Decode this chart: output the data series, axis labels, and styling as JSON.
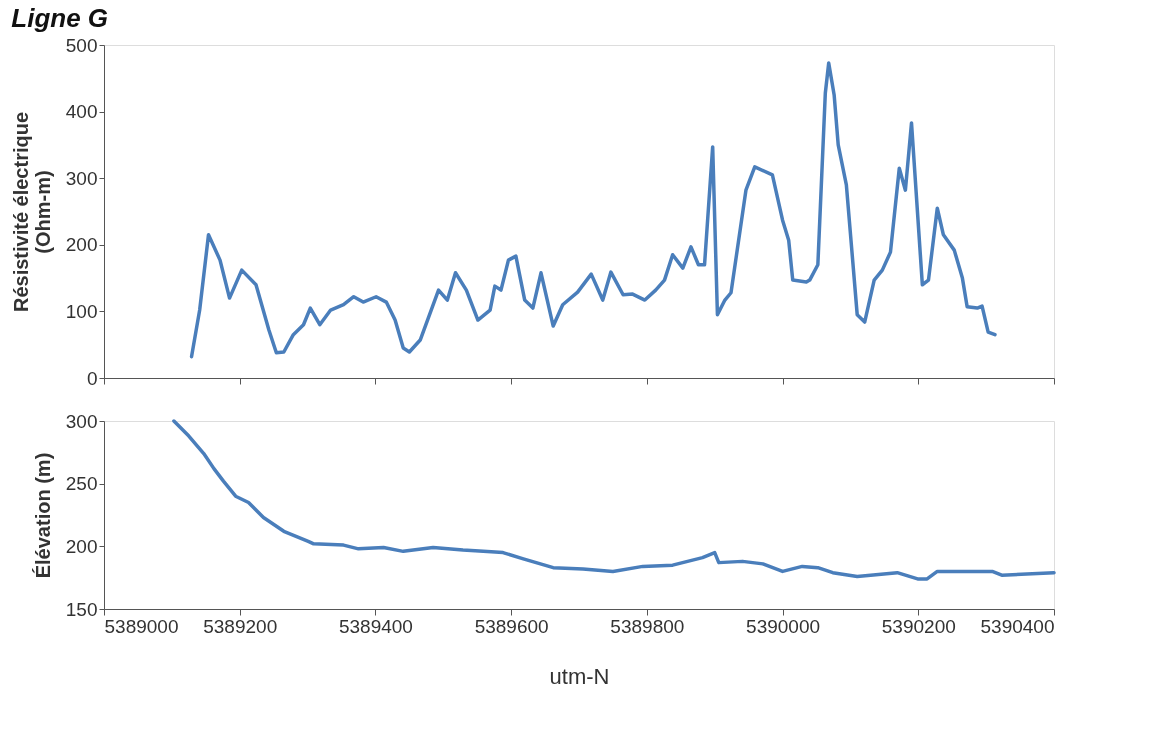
{
  "chart_data": [
    {
      "type": "line",
      "title": "Ligne G",
      "ylabel": "Résistivité électrique\n(Ohm-m)",
      "xlim": [
        5389000,
        5390400
      ],
      "xticks": [
        5389000,
        5389200,
        5389400,
        5389600,
        5389800,
        5390000,
        5390200,
        5390400
      ],
      "ylim": [
        0,
        500
      ],
      "yticks": [
        0,
        100,
        200,
        300,
        400,
        500
      ],
      "tick_labels": "y",
      "grid": false,
      "series": [
        {
          "color": "#4a7ebb",
          "x": [
            5389129,
            5389141,
            5389154,
            5389171,
            5389185,
            5389203,
            5389224,
            5389243,
            5389254,
            5389265,
            5389279,
            5389294,
            5389304,
            5389318,
            5389334,
            5389353,
            5389368,
            5389382,
            5389401,
            5389416,
            5389429,
            5389441,
            5389450,
            5389466,
            5389493,
            5389506,
            5389518,
            5389534,
            5389551,
            5389569,
            5389576,
            5389585,
            5389596,
            5389607,
            5389620,
            5389632,
            5389644,
            5389662,
            5389676,
            5389698,
            5389718,
            5389735,
            5389747,
            5389765,
            5389779,
            5389797,
            5389813,
            5389826,
            5389838,
            5389853,
            5389865,
            5389876,
            5389885,
            5389897,
            5389904,
            5389915,
            5389924,
            5389946,
            5389959,
            5389985,
            5390000,
            5390009,
            5390015,
            5390035,
            5390040,
            5390052,
            5390063,
            5390068,
            5390076,
            5390082,
            5390094,
            5390110,
            5390121,
            5390135,
            5390147,
            5390159,
            5390172,
            5390181,
            5390190,
            5390206,
            5390215,
            5390228,
            5390237,
            5390253,
            5390265,
            5390272,
            5390287,
            5390294,
            5390303,
            5390313
          ],
          "values": [
            32,
            102,
            215,
            177,
            120,
            162,
            140,
            72,
            38,
            39,
            65,
            80,
            105,
            80,
            102,
            110,
            122,
            114,
            122,
            114,
            87,
            45,
            39,
            57,
            132,
            117,
            158,
            132,
            87,
            102,
            138,
            132,
            177,
            183,
            117,
            105,
            158,
            78,
            110,
            129,
            156,
            117,
            159,
            125,
            126,
            117,
            132,
            147,
            185,
            165,
            197,
            170,
            170,
            347,
            95,
            117,
            128,
            282,
            317,
            305,
            237,
            207,
            147,
            144,
            147,
            170,
            428,
            473,
            425,
            350,
            290,
            95,
            84,
            147,
            162,
            189,
            315,
            282,
            383,
            140,
            147,
            255,
            215,
            192,
            150,
            107,
            105,
            108,
            69,
            65
          ]
        }
      ]
    },
    {
      "type": "line",
      "ylabel": "Élévation (m)",
      "xlabel": "utm-N",
      "xlim": [
        5389000,
        5390400
      ],
      "xticks": [
        5389000,
        5389200,
        5389400,
        5389600,
        5389800,
        5390000,
        5390200,
        5390400
      ],
      "ylim": [
        150,
        300
      ],
      "yticks": [
        150,
        200,
        250,
        300
      ],
      "grid": false,
      "series": [
        {
          "color": "#4a7ebb",
          "x": [
            5389103,
            5389125,
            5389147,
            5389162,
            5389176,
            5389194,
            5389213,
            5389235,
            5389265,
            5389301,
            5389309,
            5389353,
            5389375,
            5389412,
            5389441,
            5389485,
            5389529,
            5389559,
            5389588,
            5389618,
            5389662,
            5389706,
            5389750,
            5389794,
            5389838,
            5389882,
            5389900,
            5389906,
            5389941,
            5389971,
            5390000,
            5390029,
            5390052,
            5390074,
            5390110,
            5390169,
            5390199,
            5390213,
            5390228,
            5390265,
            5390309,
            5390323,
            5390400
          ],
          "values": [
            300,
            288,
            274,
            262,
            252,
            240,
            235,
            223,
            212,
            204,
            202,
            201,
            198,
            199,
            196,
            199,
            197,
            196,
            195,
            190,
            183,
            182,
            180,
            184,
            185,
            191,
            195,
            187,
            188,
            186,
            180,
            184,
            183,
            179,
            176,
            179,
            174,
            174,
            180,
            180,
            180,
            177,
            179
          ]
        }
      ]
    }
  ]
}
